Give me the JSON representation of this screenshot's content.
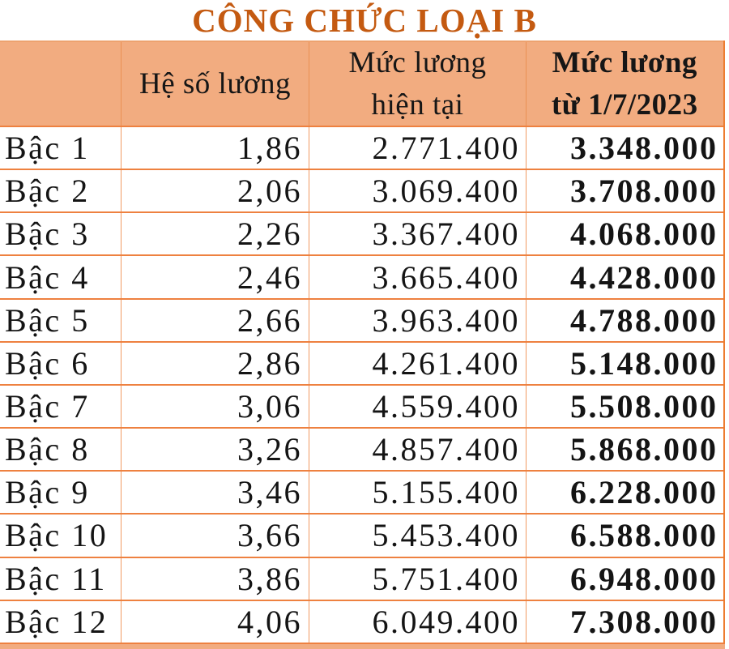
{
  "title": "CÔNG CHỨC LOẠI B",
  "colors": {
    "title_text": "#C45A11",
    "header_bg": "#F2AC80",
    "grid_line": "#ED7D31",
    "body_text": "#141414"
  },
  "table": {
    "headers": {
      "col_label": "",
      "col_coefficient": "Hệ số lương",
      "col_current_line1": "Mức lương",
      "col_current_line2": "hiện tại",
      "col_new_line1": "Mức lương",
      "col_new_line2": "từ 1/7/2023"
    },
    "rows": [
      {
        "label": "Bậc 1",
        "coefficient": "1,86",
        "current_salary": "2.771.400",
        "new_salary": "3.348.000"
      },
      {
        "label": "Bậc 2",
        "coefficient": "2,06",
        "current_salary": "3.069.400",
        "new_salary": "3.708.000"
      },
      {
        "label": "Bậc 3",
        "coefficient": "2,26",
        "current_salary": "3.367.400",
        "new_salary": "4.068.000"
      },
      {
        "label": "Bậc 4",
        "coefficient": "2,46",
        "current_salary": "3.665.400",
        "new_salary": "4.428.000"
      },
      {
        "label": "Bậc 5",
        "coefficient": "2,66",
        "current_salary": "3.963.400",
        "new_salary": "4.788.000"
      },
      {
        "label": "Bậc 6",
        "coefficient": "2,86",
        "current_salary": "4.261.400",
        "new_salary": "5.148.000"
      },
      {
        "label": "Bậc 7",
        "coefficient": "3,06",
        "current_salary": "4.559.400",
        "new_salary": "5.508.000"
      },
      {
        "label": "Bậc 8",
        "coefficient": "3,26",
        "current_salary": "4.857.400",
        "new_salary": "5.868.000"
      },
      {
        "label": "Bậc 9",
        "coefficient": "3,46",
        "current_salary": "5.155.400",
        "new_salary": "6.228.000"
      },
      {
        "label": "Bậc 10",
        "coefficient": "3,66",
        "current_salary": "5.453.400",
        "new_salary": "6.588.000"
      },
      {
        "label": "Bậc 11",
        "coefficient": "3,86",
        "current_salary": "5.751.400",
        "new_salary": "6.948.000"
      },
      {
        "label": "Bậc 12",
        "coefficient": "4,06",
        "current_salary": "6.049.400",
        "new_salary": "7.308.000"
      }
    ]
  }
}
